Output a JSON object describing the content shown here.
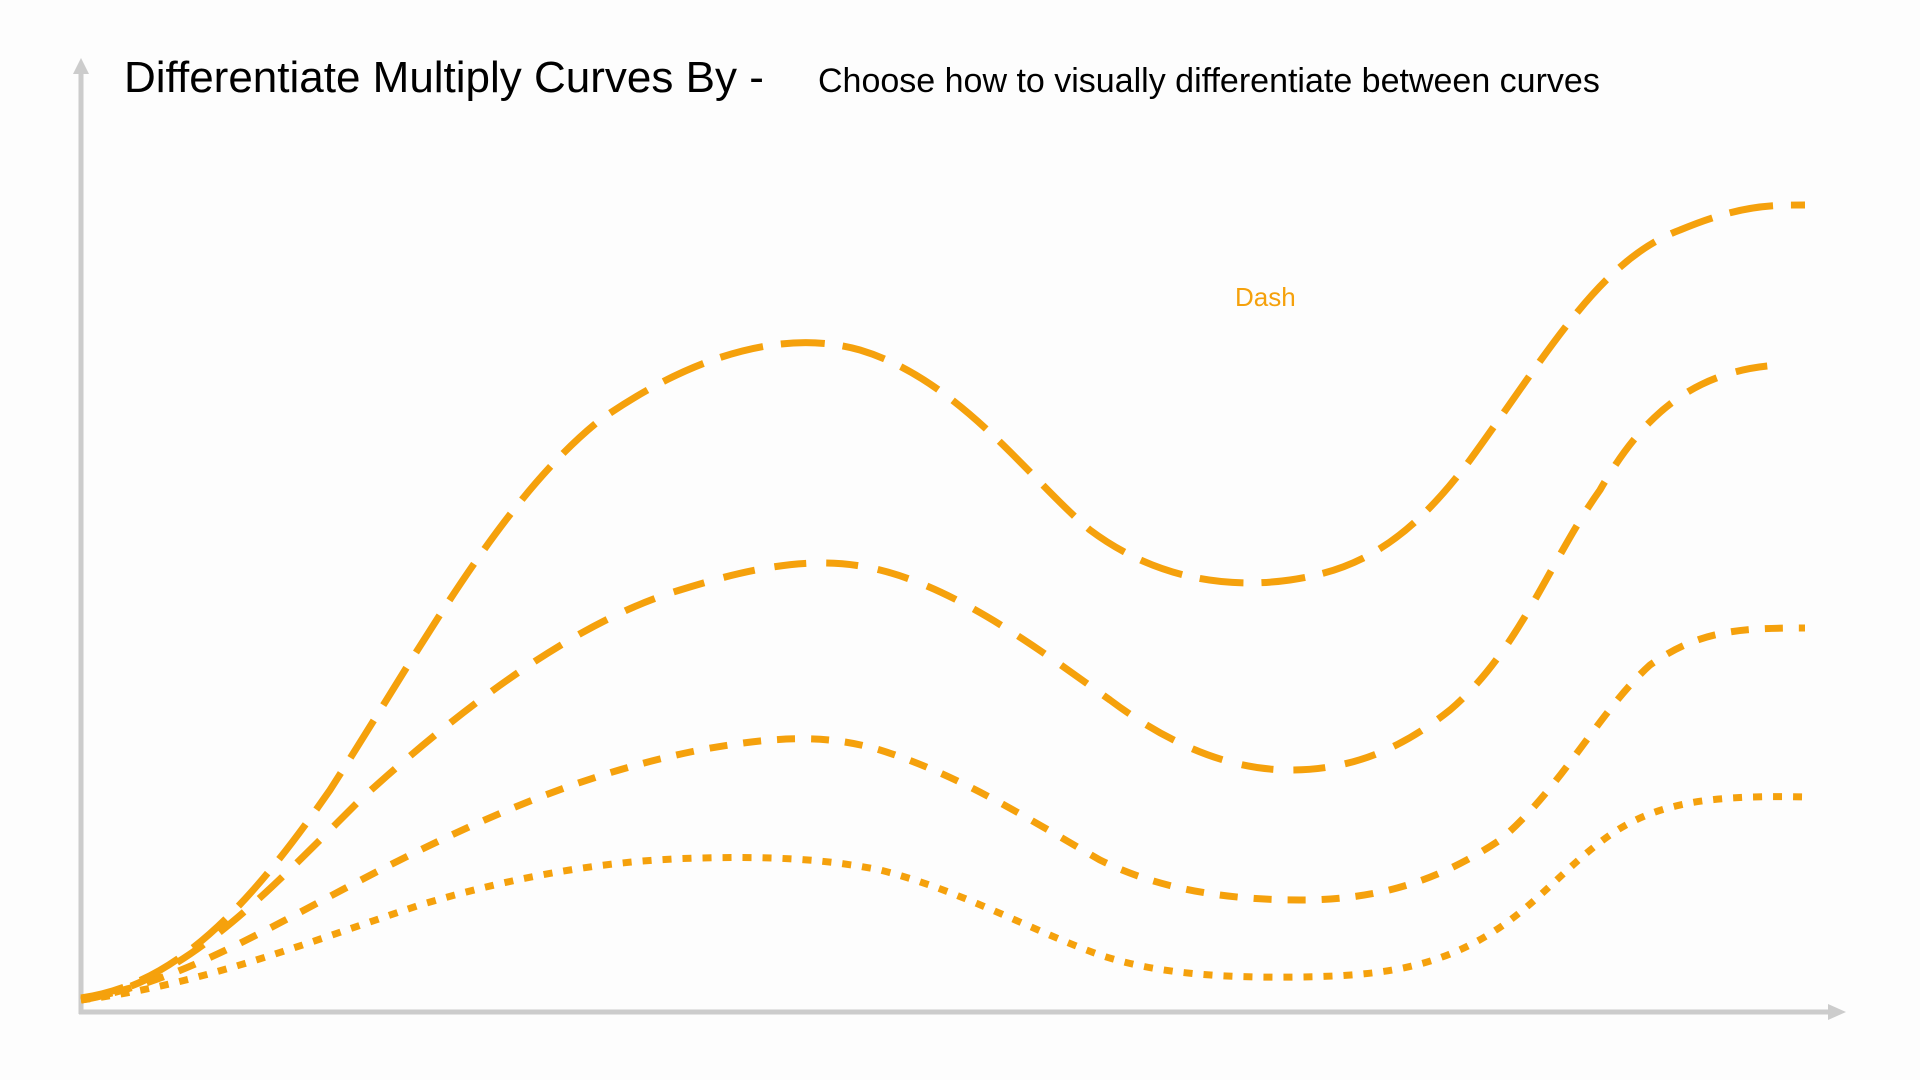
{
  "title": {
    "main": "Differentiate Multiply Curves By -",
    "subtitle": "Choose how to visually differentiate between curves"
  },
  "legend": {
    "label": "Dash"
  },
  "colors": {
    "curve": "#f5a10c",
    "axis": "#cccccc",
    "background": "#fdfdfd",
    "text": "#000000"
  },
  "axes": {
    "x_arrow": true,
    "y_arrow": true
  },
  "curves": [
    {
      "dash_style": "long-dash"
    },
    {
      "dash_style": "medium-dash"
    },
    {
      "dash_style": "short-dash"
    },
    {
      "dash_style": "dotted"
    }
  ]
}
